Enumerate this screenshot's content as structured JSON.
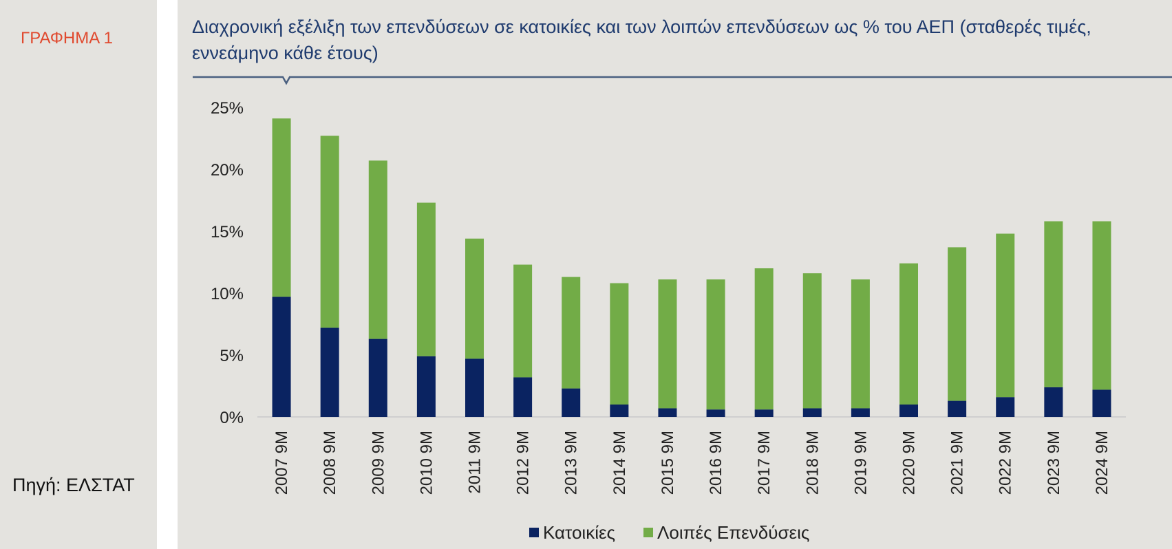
{
  "sidebar": {
    "chart_label": "ΓΡΑΦΗΜΑ 1",
    "source": "Πηγή: ΕΛΣΤΑΤ"
  },
  "colors": {
    "housing": "#0a2361",
    "other": "#72ac47",
    "title": "#1f3b6e",
    "label": "#e04a2f"
  },
  "chart_data": {
    "type": "bar",
    "stacked": true,
    "title": "Διαχρονική εξέλιξη των επενδύσεων σε κατοικίες και των λοιπών επενδύσεων ως % του ΑΕΠ (σταθερές τιμές, εννεάμηνο κάθε έτους)",
    "categories": [
      "2007 9M",
      "2008 9M",
      "2009 9M",
      "2010 9M",
      "2011 9M",
      "2012 9M",
      "2013 9M",
      "2014 9M",
      "2015 9M",
      "2016 9M",
      "2017 9M",
      "2018 9M",
      "2019 9M",
      "2020 9M",
      "2021 9M",
      "2022 9M",
      "2023 9M",
      "2024 9M"
    ],
    "series": [
      {
        "name": "Κατοικίες",
        "values": [
          9.7,
          7.2,
          6.3,
          4.9,
          4.7,
          3.2,
          2.3,
          1.0,
          0.7,
          0.6,
          0.6,
          0.7,
          0.7,
          1.0,
          1.3,
          1.6,
          2.4,
          2.2
        ]
      },
      {
        "name": "Λοιπές Επενδύσεις",
        "values": [
          14.4,
          15.5,
          14.4,
          12.4,
          9.7,
          9.1,
          9.0,
          9.8,
          10.4,
          10.5,
          11.4,
          10.9,
          10.4,
          11.4,
          12.4,
          13.2,
          13.4,
          13.6
        ]
      }
    ],
    "yticks": [
      "0%",
      "5%",
      "10%",
      "15%",
      "20%",
      "25%"
    ],
    "ylim": [
      0,
      25
    ],
    "xlabel": "",
    "ylabel": "",
    "legend_position": "bottom-center"
  }
}
